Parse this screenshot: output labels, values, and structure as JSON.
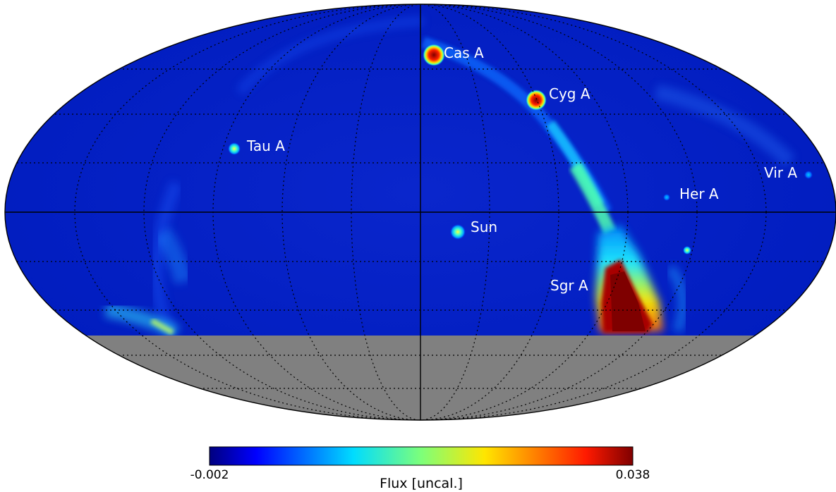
{
  "projection": "mollweide",
  "sources": [
    {
      "name": "Cas A",
      "color_level": "high"
    },
    {
      "name": "Cyg A",
      "color_level": "high"
    },
    {
      "name": "Tau A",
      "color_level": "medium"
    },
    {
      "name": "Sun",
      "color_level": "medium"
    },
    {
      "name": "Her A",
      "color_level": "low"
    },
    {
      "name": "Vir A",
      "color_level": "low"
    },
    {
      "name": "Sgr A",
      "color_level": "high"
    }
  ],
  "colorbar": {
    "min_label": "-0.002",
    "max_label": "0.038",
    "title": "Flux [uncal.]",
    "colormap": "jet"
  },
  "colors": {
    "background": "#0018c8",
    "masked_region": "#808080",
    "graticule": "#000000"
  }
}
